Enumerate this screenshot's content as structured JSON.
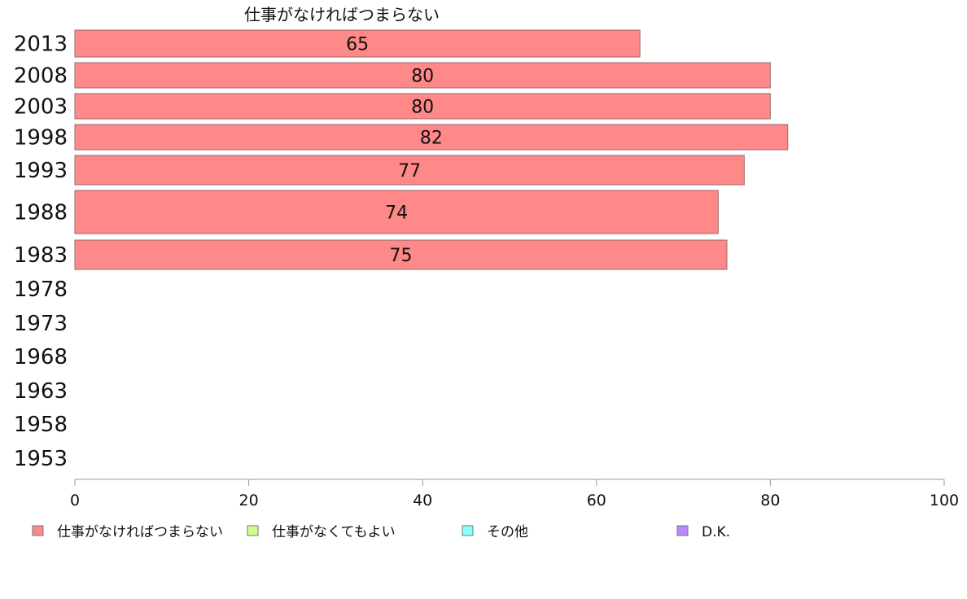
{
  "chart_data": {
    "type": "bar",
    "orientation": "horizontal",
    "stacked": true,
    "title": "仕事がなければつまらない",
    "categories": [
      "2013",
      "2008",
      "2003",
      "1998",
      "1993",
      "1988",
      "1983",
      "1978",
      "1973",
      "1968",
      "1963",
      "1958",
      "1953"
    ],
    "series": [
      {
        "name": "仕事がなければつまらない",
        "color": "#ff8888",
        "values": [
          65,
          80,
          80,
          82,
          77,
          74,
          75,
          null,
          null,
          null,
          null,
          null,
          null
        ],
        "labels": [
          "65",
          "80",
          "80",
          "82",
          "77",
          "74",
          "75",
          "",
          "",
          "",
          "",
          "",
          ""
        ]
      },
      {
        "name": "仕事がなくてもよい",
        "color": "#ccff88",
        "values": [
          null,
          null,
          null,
          null,
          null,
          null,
          null,
          null,
          null,
          null,
          null,
          null,
          null
        ]
      },
      {
        "name": "その他",
        "color": "#88ffff",
        "values": [
          null,
          null,
          null,
          null,
          null,
          null,
          null,
          null,
          null,
          null,
          null,
          null,
          null
        ]
      },
      {
        "name": "D.K.",
        "color": "#bb88ff",
        "values": [
          null,
          null,
          null,
          null,
          null,
          null,
          null,
          null,
          null,
          null,
          null,
          null,
          null
        ]
      }
    ],
    "xlim": [
      0,
      100
    ],
    "xticks": [
      "0",
      "20",
      "40",
      "60",
      "80",
      "100"
    ],
    "legend_position": "bottom",
    "grid": false
  }
}
